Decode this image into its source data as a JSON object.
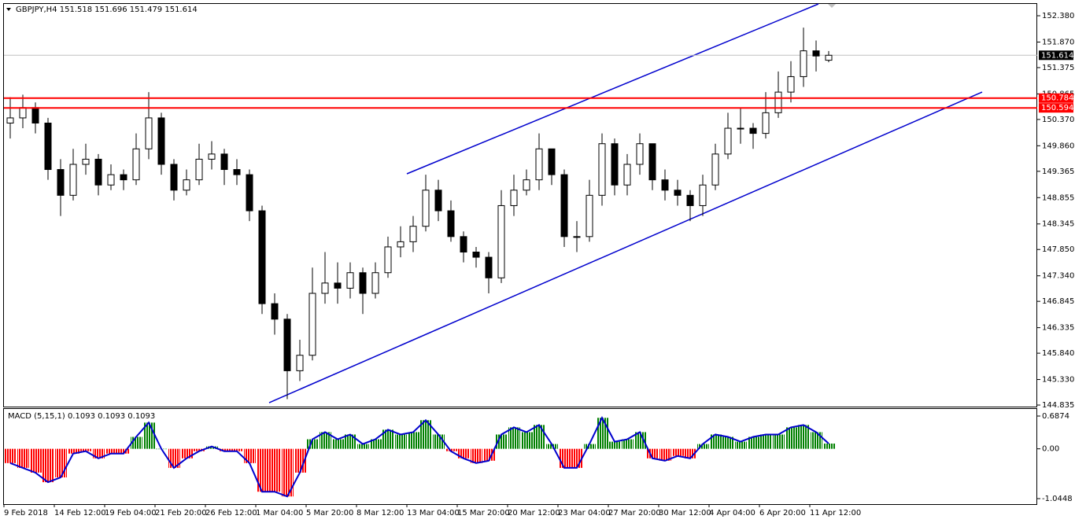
{
  "chart_data": [
    {
      "type": "candlestick",
      "title": "GBPJPY,H4  151.518 151.696 151.479 151.614",
      "x": [
        0,
        4,
        8,
        12,
        16,
        20,
        24,
        28,
        32,
        36,
        40,
        44,
        48,
        52,
        56,
        60,
        64,
        68,
        72,
        76,
        80,
        84,
        88,
        92,
        96,
        100,
        104,
        108,
        112,
        116,
        120,
        124,
        128,
        132,
        136,
        140,
        144,
        148,
        152,
        156,
        160,
        164,
        168,
        172,
        176,
        180,
        184,
        188,
        192,
        196,
        200,
        204,
        208,
        212,
        216,
        220,
        224,
        228,
        232,
        236,
        240,
        244,
        248,
        252,
        256,
        260
      ],
      "open": [
        150.3,
        150.4,
        150.6,
        150.3,
        149.4,
        148.9,
        149.5,
        149.6,
        149.1,
        149.3,
        149.2,
        149.8,
        150.4,
        149.5,
        149.0,
        149.2,
        149.6,
        149.7,
        149.4,
        149.3,
        148.6,
        146.8,
        146.5,
        145.5,
        145.8,
        147.0,
        147.2,
        147.1,
        147.4,
        147.0,
        147.4,
        147.9,
        148.0,
        148.3,
        149.0,
        148.6,
        148.1,
        147.8,
        147.7,
        147.3,
        148.7,
        149.0,
        149.2,
        149.8,
        149.3,
        148.1,
        148.1,
        148.9,
        149.9,
        149.1,
        149.5,
        149.9,
        149.2,
        149.0,
        148.9,
        148.7,
        149.1,
        149.7,
        150.2,
        150.2,
        150.1,
        150.5,
        150.9,
        151.2,
        151.7,
        151.518
      ],
      "high": [
        150.8,
        150.85,
        150.7,
        150.4,
        149.6,
        149.8,
        149.9,
        149.7,
        149.5,
        149.4,
        150.1,
        150.9,
        150.5,
        149.6,
        149.4,
        149.9,
        149.95,
        149.8,
        149.6,
        149.4,
        148.7,
        147.0,
        146.6,
        146.1,
        147.5,
        147.8,
        147.6,
        147.6,
        147.5,
        147.6,
        148.1,
        148.3,
        148.5,
        149.3,
        149.2,
        148.8,
        148.2,
        147.9,
        147.8,
        149.0,
        149.3,
        149.4,
        150.1,
        149.8,
        149.4,
        148.4,
        149.2,
        150.1,
        150.0,
        149.7,
        150.1,
        149.9,
        149.4,
        149.2,
        149.0,
        149.3,
        149.9,
        150.5,
        150.6,
        150.3,
        150.9,
        151.3,
        151.5,
        152.15,
        151.9,
        151.696
      ],
      "low": [
        150.0,
        150.2,
        150.1,
        149.2,
        148.5,
        148.8,
        149.3,
        148.9,
        149.0,
        149.0,
        149.1,
        149.6,
        149.3,
        148.8,
        148.9,
        149.1,
        149.4,
        149.1,
        149.1,
        148.4,
        146.6,
        146.2,
        144.95,
        145.3,
        145.7,
        146.8,
        146.8,
        146.9,
        146.6,
        146.9,
        147.3,
        147.7,
        147.8,
        148.2,
        148.4,
        148.0,
        147.6,
        147.5,
        147.0,
        147.2,
        148.5,
        148.9,
        149.0,
        149.1,
        147.9,
        147.8,
        148.0,
        148.7,
        148.9,
        148.9,
        149.3,
        149.0,
        148.8,
        148.7,
        148.4,
        148.5,
        149.0,
        149.6,
        149.9,
        149.8,
        150.0,
        150.4,
        150.7,
        151.0,
        151.3,
        151.479
      ],
      "close": [
        150.4,
        150.6,
        150.3,
        149.4,
        148.9,
        149.5,
        149.6,
        149.1,
        149.3,
        149.2,
        149.8,
        150.4,
        149.5,
        149.0,
        149.2,
        149.6,
        149.7,
        149.4,
        149.3,
        148.6,
        146.8,
        146.5,
        145.5,
        145.8,
        147.0,
        147.2,
        147.1,
        147.4,
        147.0,
        147.4,
        147.9,
        148.0,
        148.3,
        149.0,
        148.6,
        148.1,
        147.8,
        147.7,
        147.3,
        148.7,
        149.0,
        149.2,
        149.8,
        149.3,
        148.1,
        148.1,
        148.9,
        149.9,
        149.1,
        149.5,
        149.9,
        149.2,
        149.0,
        148.9,
        148.7,
        149.1,
        149.7,
        150.2,
        150.2,
        150.1,
        150.5,
        150.9,
        151.2,
        151.7,
        151.6,
        151.614
      ],
      "xlim": [
        0,
        328.25
      ],
      "ylim": [
        144.805,
        152.609
      ],
      "yticks": [
        {
          "value": 152.38,
          "label": "152.380"
        },
        {
          "value": 151.87,
          "label": "151.870"
        },
        {
          "value": 151.375,
          "label": "151.375"
        },
        {
          "value": 150.865,
          "label": "150.865"
        },
        {
          "value": 150.37,
          "label": "150.370"
        },
        {
          "value": 149.86,
          "label": "149.860"
        },
        {
          "value": 149.365,
          "label": "149.365"
        },
        {
          "value": 148.855,
          "label": "148.855"
        },
        {
          "value": 148.345,
          "label": "148.345"
        },
        {
          "value": 147.85,
          "label": "147.850"
        },
        {
          "value": 147.34,
          "label": "147.340"
        },
        {
          "value": 146.845,
          "label": "146.845"
        },
        {
          "value": 146.335,
          "label": "146.335"
        },
        {
          "value": 145.84,
          "label": "145.840"
        },
        {
          "value": 145.33,
          "label": "145.330"
        },
        {
          "value": 144.835,
          "label": "144.835"
        }
      ],
      "xticks": [
        {
          "value": 0,
          "label": "9 Feb 2018"
        },
        {
          "value": 16,
          "label": "14 Feb 12:00"
        },
        {
          "value": 32,
          "label": "19 Feb 04:00"
        },
        {
          "value": 48,
          "label": "21 Feb 20:00"
        },
        {
          "value": 64,
          "label": "26 Feb 12:00"
        },
        {
          "value": 80,
          "label": "1 Mar 04:00"
        },
        {
          "value": 96,
          "label": "5 Mar 20:00"
        },
        {
          "value": 112,
          "label": "8 Mar 12:00"
        },
        {
          "value": 128,
          "label": "13 Mar 04:00"
        },
        {
          "value": 144,
          "label": "15 Mar 20:00"
        },
        {
          "value": 160,
          "label": "20 Mar 12:00"
        },
        {
          "value": 176,
          "label": "23 Mar 04:00"
        },
        {
          "value": 192,
          "label": "27 Mar 20:00"
        },
        {
          "value": 208,
          "label": "30 Mar 12:00"
        },
        {
          "value": 224,
          "label": "4 Apr 04:00"
        },
        {
          "value": 240,
          "label": "6 Apr 20:00"
        },
        {
          "value": 256,
          "label": "11 Apr 12:00"
        }
      ],
      "levels": [
        {
          "value": 150.784,
          "label": "150.784",
          "color": "#ff0000"
        },
        {
          "value": 150.594,
          "label": "150.594",
          "color": "#ff0000"
        }
      ],
      "last_price": {
        "value": 151.614,
        "label": "151.614"
      }
    },
    {
      "type": "macd",
      "title": "MACD (5,15,1) 0.1093 0.1093 0.1093",
      "x": [
        0,
        4,
        8,
        12,
        16,
        20,
        24,
        28,
        32,
        36,
        40,
        44,
        48,
        52,
        56,
        60,
        64,
        68,
        72,
        76,
        80,
        84,
        88,
        92,
        96,
        100,
        104,
        108,
        112,
        116,
        120,
        124,
        128,
        132,
        136,
        140,
        144,
        148,
        152,
        156,
        160,
        164,
        168,
        172,
        176,
        180,
        184,
        188,
        192,
        196,
        200,
        204,
        208,
        212,
        216,
        220,
        224,
        228,
        232,
        236,
        240,
        244,
        248,
        252,
        256,
        260
      ],
      "values": [
        -0.3,
        -0.4,
        -0.5,
        -0.7,
        -0.6,
        -0.1,
        -0.05,
        -0.2,
        -0.1,
        -0.1,
        0.25,
        0.55,
        0.0,
        -0.4,
        -0.2,
        -0.05,
        0.05,
        -0.05,
        -0.05,
        -0.3,
        -0.9,
        -0.9,
        -1.0,
        -0.5,
        0.2,
        0.35,
        0.2,
        0.3,
        0.1,
        0.2,
        0.4,
        0.3,
        0.35,
        0.6,
        0.3,
        -0.05,
        -0.2,
        -0.3,
        -0.25,
        0.3,
        0.45,
        0.35,
        0.5,
        0.1,
        -0.4,
        -0.4,
        0.1,
        0.65,
        0.15,
        0.2,
        0.35,
        -0.2,
        -0.25,
        -0.15,
        -0.2,
        0.1,
        0.3,
        0.25,
        0.15,
        0.25,
        0.3,
        0.3,
        0.45,
        0.5,
        0.35,
        0.11
      ],
      "xlim": [
        0,
        328.25
      ],
      "ylim": [
        -1.144,
        0.836
      ],
      "yticks": [
        0.6874,
        {
          "value": 0,
          "label": "0.00"
        },
        -1.0448
      ],
      "colors": {
        "positive": "#008000",
        "negative": "#ff0000",
        "line": "#0000cd"
      }
    }
  ]
}
